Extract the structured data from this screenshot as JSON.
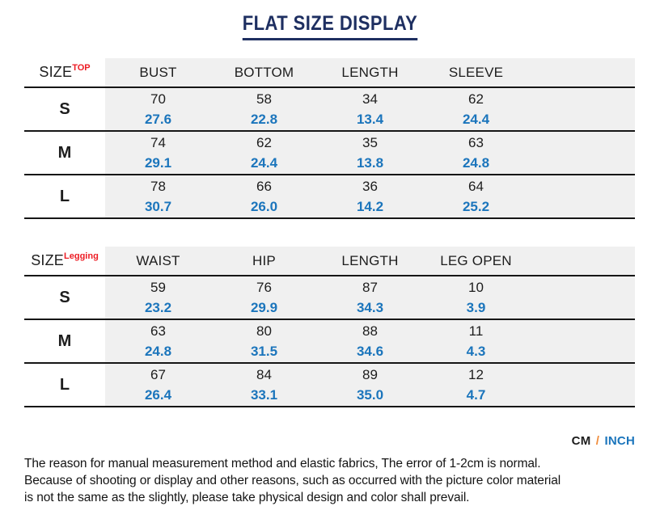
{
  "title": "FLAT SIZE DISPLAY",
  "tables": [
    {
      "size_label": "SIZE",
      "size_tag": "TOP",
      "columns": [
        "BUST",
        "BOTTOM",
        "LENGTH",
        "SLEEVE"
      ],
      "rows": [
        {
          "size": "S",
          "cm": [
            "70",
            "58",
            "34",
            "62"
          ],
          "inch": [
            "27.6",
            "22.8",
            "13.4",
            "24.4"
          ]
        },
        {
          "size": "M",
          "cm": [
            "74",
            "62",
            "35",
            "63"
          ],
          "inch": [
            "29.1",
            "24.4",
            "13.8",
            "24.8"
          ]
        },
        {
          "size": "L",
          "cm": [
            "78",
            "66",
            "36",
            "64"
          ],
          "inch": [
            "30.7",
            "26.0",
            "14.2",
            "25.2"
          ]
        }
      ]
    },
    {
      "size_label": "SIZE",
      "size_tag": "Legging",
      "columns": [
        "WAIST",
        "HIP",
        "LENGTH",
        "LEG OPEN"
      ],
      "rows": [
        {
          "size": "S",
          "cm": [
            "59",
            "76",
            "87",
            "10"
          ],
          "inch": [
            "23.2",
            "29.9",
            "34.3",
            "3.9"
          ]
        },
        {
          "size": "M",
          "cm": [
            "63",
            "80",
            "88",
            "11"
          ],
          "inch": [
            "24.8",
            "31.5",
            "34.6",
            "4.3"
          ]
        },
        {
          "size": "L",
          "cm": [
            "67",
            "84",
            "89",
            "12"
          ],
          "inch": [
            "26.4",
            "33.1",
            "35.0",
            "4.7"
          ]
        }
      ]
    }
  ],
  "unit_note": {
    "cm": "CM",
    "sep": "/",
    "inch": "INCH"
  },
  "footer_lines": [
    "The reason for manual measurement method and elastic fabrics, The error of 1-2cm is normal.",
    "Because of shooting or display and other reasons, such as occurred with the picture color material",
    "is not the same as the slightly, please take physical design and color shall prevail."
  ],
  "colors": {
    "title_navy": "#1e2f61",
    "tag_red": "#ed1c24",
    "inch_blue": "#1b75bc",
    "slash_orange": "#f08c3c",
    "cell_gray": "#f0f0f0",
    "line_black": "#161616"
  },
  "chart_data": [
    {
      "type": "table",
      "title": "SIZE TOP",
      "columns": [
        "SIZE",
        "BUST",
        "BOTTOM",
        "LENGTH",
        "SLEEVE"
      ],
      "units": [
        "cm",
        "inch"
      ],
      "rows_cm": [
        [
          "S",
          70,
          58,
          34,
          62
        ],
        [
          "M",
          74,
          62,
          35,
          63
        ],
        [
          "L",
          78,
          66,
          36,
          64
        ]
      ],
      "rows_inch": [
        [
          "S",
          27.6,
          22.8,
          13.4,
          24.4
        ],
        [
          "M",
          29.1,
          24.4,
          13.8,
          24.8
        ],
        [
          "L",
          30.7,
          26.0,
          14.2,
          25.2
        ]
      ]
    },
    {
      "type": "table",
      "title": "SIZE Legging",
      "columns": [
        "SIZE",
        "WAIST",
        "HIP",
        "LENGTH",
        "LEG OPEN"
      ],
      "units": [
        "cm",
        "inch"
      ],
      "rows_cm": [
        [
          "S",
          59,
          76,
          87,
          10
        ],
        [
          "M",
          63,
          80,
          88,
          11
        ],
        [
          "L",
          67,
          84,
          89,
          12
        ]
      ],
      "rows_inch": [
        [
          "S",
          23.2,
          29.9,
          34.3,
          3.9
        ],
        [
          "M",
          24.8,
          31.5,
          34.6,
          4.3
        ],
        [
          "L",
          26.4,
          33.1,
          35.0,
          4.7
        ]
      ]
    }
  ]
}
